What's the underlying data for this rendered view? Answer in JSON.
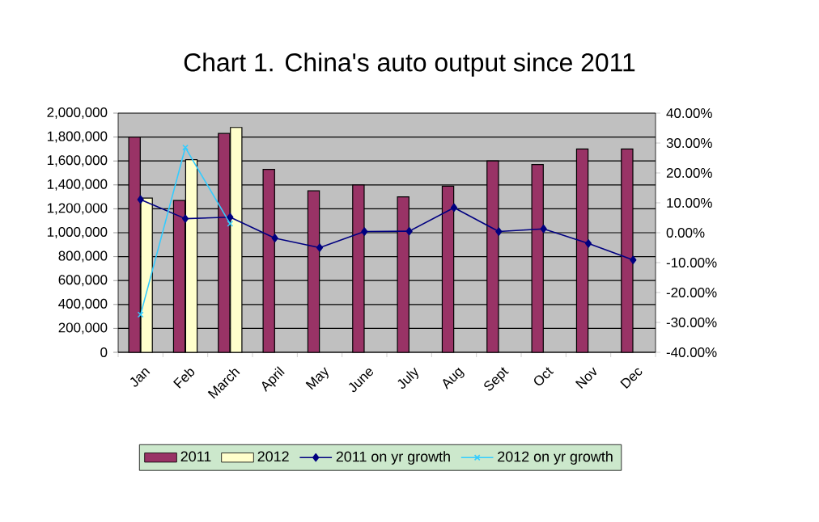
{
  "chart_data": {
    "type": "bar",
    "title": "Chart 1. China's auto output since 2011",
    "categories": [
      "Jan",
      "Feb",
      "March",
      "April",
      "May",
      "June",
      "July",
      "Aug",
      "Sept",
      "Oct",
      "Nov",
      "Dec"
    ],
    "series": [
      {
        "name": "2011",
        "color": "#993366",
        "values": [
          1800000,
          1270000,
          1830000,
          1530000,
          1350000,
          1400000,
          1300000,
          1390000,
          1600000,
          1570000,
          1700000,
          1700000
        ]
      },
      {
        "name": "2012",
        "color": "#ffffcc",
        "values": [
          1290000,
          1610000,
          1880000,
          null,
          null,
          null,
          null,
          null,
          null,
          null,
          null,
          null
        ]
      },
      {
        "name": "2011 on yr growth",
        "type": "line",
        "axis": "y2",
        "marker": "diamond",
        "color": "#000080",
        "values": [
          11.1,
          4.7,
          5.2,
          -1.8,
          -5.0,
          0.4,
          0.5,
          8.4,
          0.4,
          1.3,
          -3.6,
          -9.1
        ]
      },
      {
        "name": "2012 on yr growth",
        "type": "line",
        "axis": "y2",
        "marker": "cross",
        "color": "#33ccff",
        "values": [
          -27.4,
          28.5,
          3.0,
          null,
          null,
          null,
          null,
          null,
          null,
          null,
          null,
          null
        ]
      }
    ],
    "ylim": [
      0,
      2000000
    ],
    "yticks": [
      {
        "value": 0,
        "label": "0"
      },
      {
        "value": 200000,
        "label": "200,000"
      },
      {
        "value": 400000,
        "label": "400,000"
      },
      {
        "value": 600000,
        "label": "600,000"
      },
      {
        "value": 800000,
        "label": "800,000"
      },
      {
        "value": 1000000,
        "label": "1,000,000"
      },
      {
        "value": 1200000,
        "label": "1,200,000"
      },
      {
        "value": 1400000,
        "label": "1,400,000"
      },
      {
        "value": 1600000,
        "label": "1,600,000"
      },
      {
        "value": 1800000,
        "label": "1,800,000"
      },
      {
        "value": 2000000,
        "label": "2,000,000"
      }
    ],
    "y2lim": [
      -40,
      40
    ],
    "y2ticks": [
      {
        "value": -40,
        "label": "-40.00%"
      },
      {
        "value": -30,
        "label": "-30.00%"
      },
      {
        "value": -20,
        "label": "-20.00%"
      },
      {
        "value": -10,
        "label": "-10.00%"
      },
      {
        "value": 0,
        "label": "0.00%"
      },
      {
        "value": 10,
        "label": "10.00%"
      },
      {
        "value": 20,
        "label": "20.00%"
      },
      {
        "value": 30,
        "label": "30.00%"
      },
      {
        "value": 40,
        "label": "40.00%"
      }
    ],
    "grid": "y",
    "legend": "bottom",
    "line_style": "solid"
  }
}
